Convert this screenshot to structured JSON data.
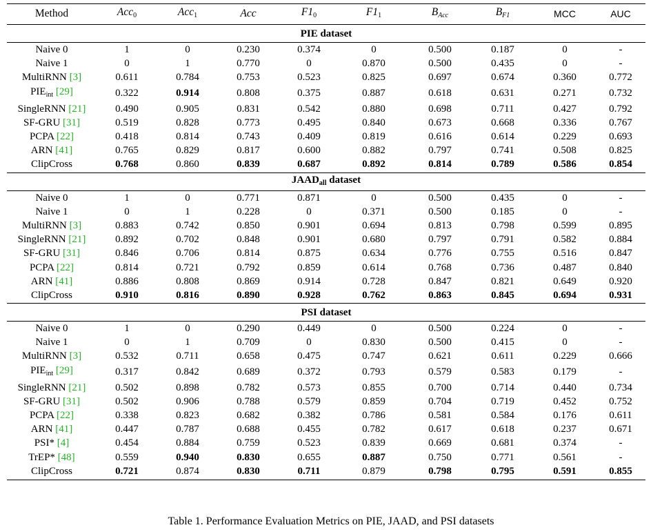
{
  "header": {
    "method": "Method",
    "acc0": "Acc",
    "acc0_sub": "0",
    "acc1": "Acc",
    "acc1_sub": "1",
    "acc": "Acc",
    "f10": "F1",
    "f10_sub": "0",
    "f11": "F1",
    "f11_sub": "1",
    "bacc": "B",
    "bacc_sub": "Acc",
    "bf1": "B",
    "bf1_sub": "F1",
    "mcc": "MCC",
    "auc": "AUC"
  },
  "sections": [
    {
      "title": "PIE dataset",
      "rows": [
        {
          "method": "Naive 0",
          "cite": "",
          "values": [
            "1",
            "0",
            "0.230",
            "0.374",
            "0",
            "0.500",
            "0.187",
            "0",
            "-"
          ],
          "bold": []
        },
        {
          "method": "Naive 1",
          "cite": "",
          "values": [
            "0",
            "1",
            "0.770",
            "0",
            "0.870",
            "0.500",
            "0.435",
            "0",
            "-"
          ],
          "bold": []
        },
        {
          "method": "MultiRNN ",
          "cite": "[3]",
          "values": [
            "0.611",
            "0.784",
            "0.753",
            "0.523",
            "0.825",
            "0.697",
            "0.674",
            "0.360",
            "0.772"
          ],
          "bold": []
        },
        {
          "method": "PIE",
          "sub": "int",
          "cite": " [29]",
          "values": [
            "0.322",
            "0.914",
            "0.808",
            "0.375",
            "0.887",
            "0.618",
            "0.631",
            "0.271",
            "0.732"
          ],
          "bold": [
            1
          ]
        },
        {
          "method": "SingleRNN ",
          "cite": "[21]",
          "values": [
            "0.490",
            "0.905",
            "0.831",
            "0.542",
            "0.880",
            "0.698",
            "0.711",
            "0.427",
            "0.792"
          ],
          "bold": []
        },
        {
          "method": "SF-GRU ",
          "cite": "[31]",
          "values": [
            "0.519",
            "0.828",
            "0.773",
            "0.495",
            "0.840",
            "0.673",
            "0.668",
            "0.336",
            "0.767"
          ],
          "bold": []
        },
        {
          "method": "PCPA ",
          "cite": "[22]",
          "values": [
            "0.418",
            "0.814",
            "0.743",
            "0.409",
            "0.819",
            "0.616",
            "0.614",
            "0.229",
            "0.693"
          ],
          "bold": []
        },
        {
          "method": "ARN ",
          "cite": "[41]",
          "values": [
            "0.765",
            "0.829",
            "0.817",
            "0.600",
            "0.882",
            "0.797",
            "0.741",
            "0.508",
            "0.825"
          ],
          "bold": []
        },
        {
          "method": "ClipCross",
          "cite": "",
          "values": [
            "0.768",
            "0.860",
            "0.839",
            "0.687",
            "0.892",
            "0.814",
            "0.789",
            "0.586",
            "0.854"
          ],
          "bold": [
            0,
            2,
            3,
            4,
            5,
            6,
            7,
            8
          ]
        }
      ]
    },
    {
      "title": "JAAD",
      "title_sub": "all",
      "title_suffix": " dataset",
      "rows": [
        {
          "method": "Naive 0",
          "cite": "",
          "values": [
            "1",
            "0",
            "0.771",
            "0.871",
            "0",
            "0.500",
            "0.435",
            "0",
            "-"
          ],
          "bold": []
        },
        {
          "method": "Naive 1",
          "cite": "",
          "values": [
            "0",
            "1",
            "0.228",
            "0",
            "0.371",
            "0.500",
            "0.185",
            "0",
            "-"
          ],
          "bold": []
        },
        {
          "method": "MultiRNN ",
          "cite": "[3]",
          "values": [
            "0.883",
            "0.742",
            "0.850",
            "0.901",
            "0.694",
            "0.813",
            "0.798",
            "0.599",
            "0.895"
          ],
          "bold": []
        },
        {
          "method": "SingleRNN ",
          "cite": "[21]",
          "values": [
            "0.892",
            "0.702",
            "0.848",
            "0.901",
            "0.680",
            "0.797",
            "0.791",
            "0.582",
            "0.884"
          ],
          "bold": []
        },
        {
          "method": "SF-GRU ",
          "cite": "[31]",
          "values": [
            "0.846",
            "0.706",
            "0.814",
            "0.875",
            "0.634",
            "0.776",
            "0.755",
            "0.516",
            "0.847"
          ],
          "bold": []
        },
        {
          "method": "PCPA ",
          "cite": "[22]",
          "values": [
            "0.814",
            "0.721",
            "0.792",
            "0.859",
            "0.614",
            "0.768",
            "0.736",
            "0.487",
            "0.840"
          ],
          "bold": []
        },
        {
          "method": "ARN ",
          "cite": "[41]",
          "values": [
            "0.886",
            "0.808",
            "0.869",
            "0.914",
            "0.728",
            "0.847",
            "0.821",
            "0.649",
            "0.920"
          ],
          "bold": []
        },
        {
          "method": "ClipCross",
          "cite": "",
          "values": [
            "0.910",
            "0.816",
            "0.890",
            "0.928",
            "0.762",
            "0.863",
            "0.845",
            "0.694",
            "0.931"
          ],
          "bold": [
            0,
            1,
            2,
            3,
            4,
            5,
            6,
            7,
            8
          ]
        }
      ]
    },
    {
      "title": "PSI dataset",
      "rows": [
        {
          "method": "Naive 0",
          "cite": "",
          "values": [
            "1",
            "0",
            "0.290",
            "0.449",
            "0",
            "0.500",
            "0.224",
            "0",
            "-"
          ],
          "bold": []
        },
        {
          "method": "Naive 1",
          "cite": "",
          "values": [
            "0",
            "1",
            "0.709",
            "0",
            "0.830",
            "0.500",
            "0.415",
            "0",
            "-"
          ],
          "bold": []
        },
        {
          "method": "MultiRNN ",
          "cite": "[3]",
          "values": [
            "0.532",
            "0.711",
            "0.658",
            "0.475",
            "0.747",
            "0.621",
            "0.611",
            "0.229",
            "0.666"
          ],
          "bold": []
        },
        {
          "method": "PIE",
          "sub": "int",
          "cite": " [29]",
          "values": [
            "0.317",
            "0.842",
            "0.689",
            "0.372",
            "0.793",
            "0.579",
            "0.583",
            "0.179",
            "-"
          ],
          "bold": []
        },
        {
          "method": "SingleRNN ",
          "cite": "[21]",
          "values": [
            "0.502",
            "0.898",
            "0.782",
            "0.573",
            "0.855",
            "0.700",
            "0.714",
            "0.440",
            "0.734"
          ],
          "bold": []
        },
        {
          "method": "SF-GRU ",
          "cite": "[31]",
          "values": [
            "0.502",
            "0.906",
            "0.788",
            "0.579",
            "0.859",
            "0.704",
            "0.719",
            "0.452",
            "0.752"
          ],
          "bold": []
        },
        {
          "method": "PCPA ",
          "cite": "[22]",
          "values": [
            "0.338",
            "0.823",
            "0.682",
            "0.382",
            "0.786",
            "0.581",
            "0.584",
            "0.176",
            "0.611"
          ],
          "bold": []
        },
        {
          "method": "ARN ",
          "cite": "[41]",
          "values": [
            "0.447",
            "0.787",
            "0.688",
            "0.455",
            "0.782",
            "0.617",
            "0.618",
            "0.237",
            "0.671"
          ],
          "bold": []
        },
        {
          "method": "PSI* ",
          "cite": "[4]",
          "values": [
            "0.454",
            "0.884",
            "0.759",
            "0.523",
            "0.839",
            "0.669",
            "0.681",
            "0.374",
            "-"
          ],
          "bold": []
        },
        {
          "method": "TrEP* ",
          "cite": "[48]",
          "values": [
            "0.559",
            "0.940",
            "0.830",
            "0.655",
            "0.887",
            "0.750",
            "0.771",
            "0.561",
            "-"
          ],
          "bold": [
            1,
            2,
            4
          ]
        },
        {
          "method": "ClipCross",
          "cite": "",
          "values": [
            "0.721",
            "0.874",
            "0.830",
            "0.711",
            "0.879",
            "0.798",
            "0.795",
            "0.591",
            "0.855"
          ],
          "bold": [
            0,
            2,
            3,
            5,
            6,
            7,
            8
          ]
        }
      ]
    }
  ],
  "caption": "Table 1. Performance Evaluation Metrics on PIE, JAAD, and PSI datasets"
}
